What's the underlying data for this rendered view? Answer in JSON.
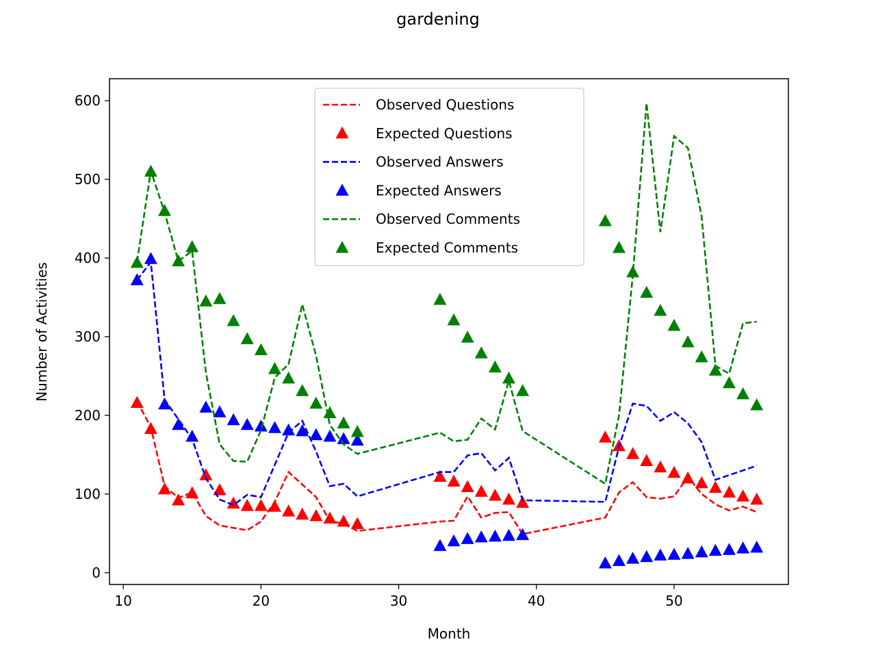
{
  "chart_data": {
    "type": "line",
    "title": "gardening",
    "xlabel": "Month",
    "ylabel": "Number of Activities",
    "xlim": [
      9,
      58.3
    ],
    "ylim": [
      -15,
      628
    ],
    "xticks": [
      10,
      20,
      30,
      40,
      50
    ],
    "yticks": [
      0,
      100,
      200,
      300,
      400,
      500,
      600
    ],
    "legend_position": "top-center",
    "grid": false,
    "series": [
      {
        "name": "Observed Questions",
        "style": "dashed",
        "color": "#ff0000",
        "points": [
          [
            11,
            218
          ],
          [
            12,
            185
          ],
          [
            13,
            110
          ],
          [
            14,
            95
          ],
          [
            15,
            102
          ],
          [
            16,
            72
          ],
          [
            17,
            60
          ],
          [
            18,
            57
          ],
          [
            19,
            54
          ],
          [
            20,
            65
          ],
          [
            21,
            90
          ],
          [
            22,
            128
          ],
          [
            23,
            112
          ],
          [
            24,
            96
          ],
          [
            25,
            66
          ],
          [
            26,
            62
          ],
          [
            27,
            53
          ],
          [
            33,
            65
          ],
          [
            34,
            66
          ],
          [
            35,
            97
          ],
          [
            36,
            70
          ],
          [
            37,
            76
          ],
          [
            38,
            77
          ],
          [
            39,
            49
          ],
          [
            45,
            70
          ],
          [
            46,
            102
          ],
          [
            47,
            115
          ],
          [
            48,
            96
          ],
          [
            49,
            94
          ],
          [
            50,
            97
          ],
          [
            51,
            122
          ],
          [
            52,
            100
          ],
          [
            53,
            87
          ],
          [
            54,
            79
          ],
          [
            55,
            84
          ],
          [
            56,
            77
          ]
        ]
      },
      {
        "name": "Expected Questions",
        "style": "triangle",
        "color": "#ff0000",
        "points": [
          [
            11,
            216
          ],
          [
            12,
            183
          ],
          [
            13,
            106
          ],
          [
            14,
            92
          ],
          [
            15,
            101
          ],
          [
            16,
            124
          ],
          [
            17,
            105
          ],
          [
            18,
            88
          ],
          [
            19,
            85
          ],
          [
            20,
            85
          ],
          [
            21,
            84
          ],
          [
            22,
            78
          ],
          [
            23,
            74
          ],
          [
            24,
            72
          ],
          [
            25,
            69
          ],
          [
            26,
            65
          ],
          [
            27,
            62
          ],
          [
            33,
            122
          ],
          [
            34,
            116
          ],
          [
            35,
            109
          ],
          [
            36,
            103
          ],
          [
            37,
            98
          ],
          [
            38,
            93
          ],
          [
            39,
            89
          ],
          [
            45,
            172
          ],
          [
            46,
            161
          ],
          [
            47,
            151
          ],
          [
            48,
            142
          ],
          [
            49,
            134
          ],
          [
            50,
            127
          ],
          [
            51,
            120
          ],
          [
            52,
            114
          ],
          [
            53,
            108
          ],
          [
            54,
            102
          ],
          [
            55,
            97
          ],
          [
            56,
            93
          ]
        ]
      },
      {
        "name": "Observed Answers",
        "style": "dashed",
        "color": "#0000ff",
        "points": [
          [
            11,
            372
          ],
          [
            12,
            395
          ],
          [
            13,
            220
          ],
          [
            14,
            195
          ],
          [
            15,
            170
          ],
          [
            16,
            120
          ],
          [
            17,
            93
          ],
          [
            18,
            86
          ],
          [
            19,
            99
          ],
          [
            20,
            96
          ],
          [
            21,
            137
          ],
          [
            22,
            178
          ],
          [
            23,
            193
          ],
          [
            24,
            154
          ],
          [
            25,
            110
          ],
          [
            26,
            113
          ],
          [
            27,
            97
          ],
          [
            33,
            128
          ],
          [
            34,
            128
          ],
          [
            35,
            149
          ],
          [
            36,
            152
          ],
          [
            37,
            130
          ],
          [
            38,
            146
          ],
          [
            39,
            92
          ],
          [
            45,
            90
          ],
          [
            46,
            160
          ],
          [
            47,
            215
          ],
          [
            48,
            212
          ],
          [
            49,
            193
          ],
          [
            50,
            204
          ],
          [
            51,
            190
          ],
          [
            52,
            166
          ],
          [
            53,
            118
          ],
          [
            54,
            124
          ],
          [
            55,
            130
          ],
          [
            56,
            136
          ]
        ]
      },
      {
        "name": "Expected Answers",
        "style": "triangle",
        "color": "#0000ff",
        "points": [
          [
            11,
            372
          ],
          [
            12,
            399
          ],
          [
            13,
            214
          ],
          [
            14,
            188
          ],
          [
            15,
            173
          ],
          [
            16,
            210
          ],
          [
            17,
            204
          ],
          [
            18,
            194
          ],
          [
            19,
            188
          ],
          [
            20,
            186
          ],
          [
            21,
            184
          ],
          [
            22,
            181
          ],
          [
            23,
            180
          ],
          [
            24,
            175
          ],
          [
            25,
            173
          ],
          [
            26,
            170
          ],
          [
            27,
            168
          ],
          [
            33,
            34
          ],
          [
            34,
            40
          ],
          [
            35,
            43
          ],
          [
            36,
            45
          ],
          [
            37,
            46
          ],
          [
            38,
            47
          ],
          [
            39,
            48
          ],
          [
            45,
            12
          ],
          [
            46,
            15
          ],
          [
            47,
            18
          ],
          [
            48,
            20
          ],
          [
            49,
            22
          ],
          [
            50,
            23
          ],
          [
            51,
            24
          ],
          [
            52,
            26
          ],
          [
            53,
            28
          ],
          [
            54,
            29
          ],
          [
            55,
            31
          ],
          [
            56,
            32
          ]
        ]
      },
      {
        "name": "Observed Comments",
        "style": "dashed",
        "color": "#008000",
        "points": [
          [
            11,
            395
          ],
          [
            12,
            511
          ],
          [
            13,
            458
          ],
          [
            14,
            396
          ],
          [
            15,
            409
          ],
          [
            16,
            254
          ],
          [
            17,
            163
          ],
          [
            18,
            142
          ],
          [
            19,
            141
          ],
          [
            20,
            181
          ],
          [
            21,
            248
          ],
          [
            22,
            265
          ],
          [
            23,
            341
          ],
          [
            24,
            276
          ],
          [
            25,
            188
          ],
          [
            26,
            163
          ],
          [
            27,
            151
          ],
          [
            33,
            178
          ],
          [
            34,
            167
          ],
          [
            35,
            169
          ],
          [
            36,
            196
          ],
          [
            37,
            182
          ],
          [
            38,
            244
          ],
          [
            39,
            180
          ],
          [
            45,
            113
          ],
          [
            46,
            200
          ],
          [
            47,
            378
          ],
          [
            48,
            597
          ],
          [
            49,
            433
          ],
          [
            50,
            555
          ],
          [
            51,
            540
          ],
          [
            52,
            453
          ],
          [
            53,
            263
          ],
          [
            54,
            253
          ],
          [
            55,
            317
          ],
          [
            56,
            319
          ]
        ]
      },
      {
        "name": "Expected Comments",
        "style": "triangle",
        "color": "#008000",
        "points": [
          [
            11,
            394
          ],
          [
            12,
            510
          ],
          [
            13,
            460
          ],
          [
            14,
            396
          ],
          [
            15,
            414
          ],
          [
            16,
            345
          ],
          [
            17,
            348
          ],
          [
            18,
            320
          ],
          [
            19,
            297
          ],
          [
            20,
            283
          ],
          [
            21,
            259
          ],
          [
            22,
            247
          ],
          [
            23,
            231
          ],
          [
            24,
            215
          ],
          [
            25,
            203
          ],
          [
            26,
            190
          ],
          [
            27,
            179
          ],
          [
            33,
            347
          ],
          [
            34,
            321
          ],
          [
            35,
            299
          ],
          [
            36,
            279
          ],
          [
            37,
            261
          ],
          [
            38,
            247
          ],
          [
            39,
            231
          ],
          [
            45,
            447
          ],
          [
            46,
            413
          ],
          [
            47,
            382
          ],
          [
            48,
            356
          ],
          [
            49,
            333
          ],
          [
            50,
            314
          ],
          [
            51,
            293
          ],
          [
            52,
            274
          ],
          [
            53,
            257
          ],
          [
            54,
            241
          ],
          [
            55,
            227
          ],
          [
            56,
            213
          ]
        ]
      }
    ]
  }
}
